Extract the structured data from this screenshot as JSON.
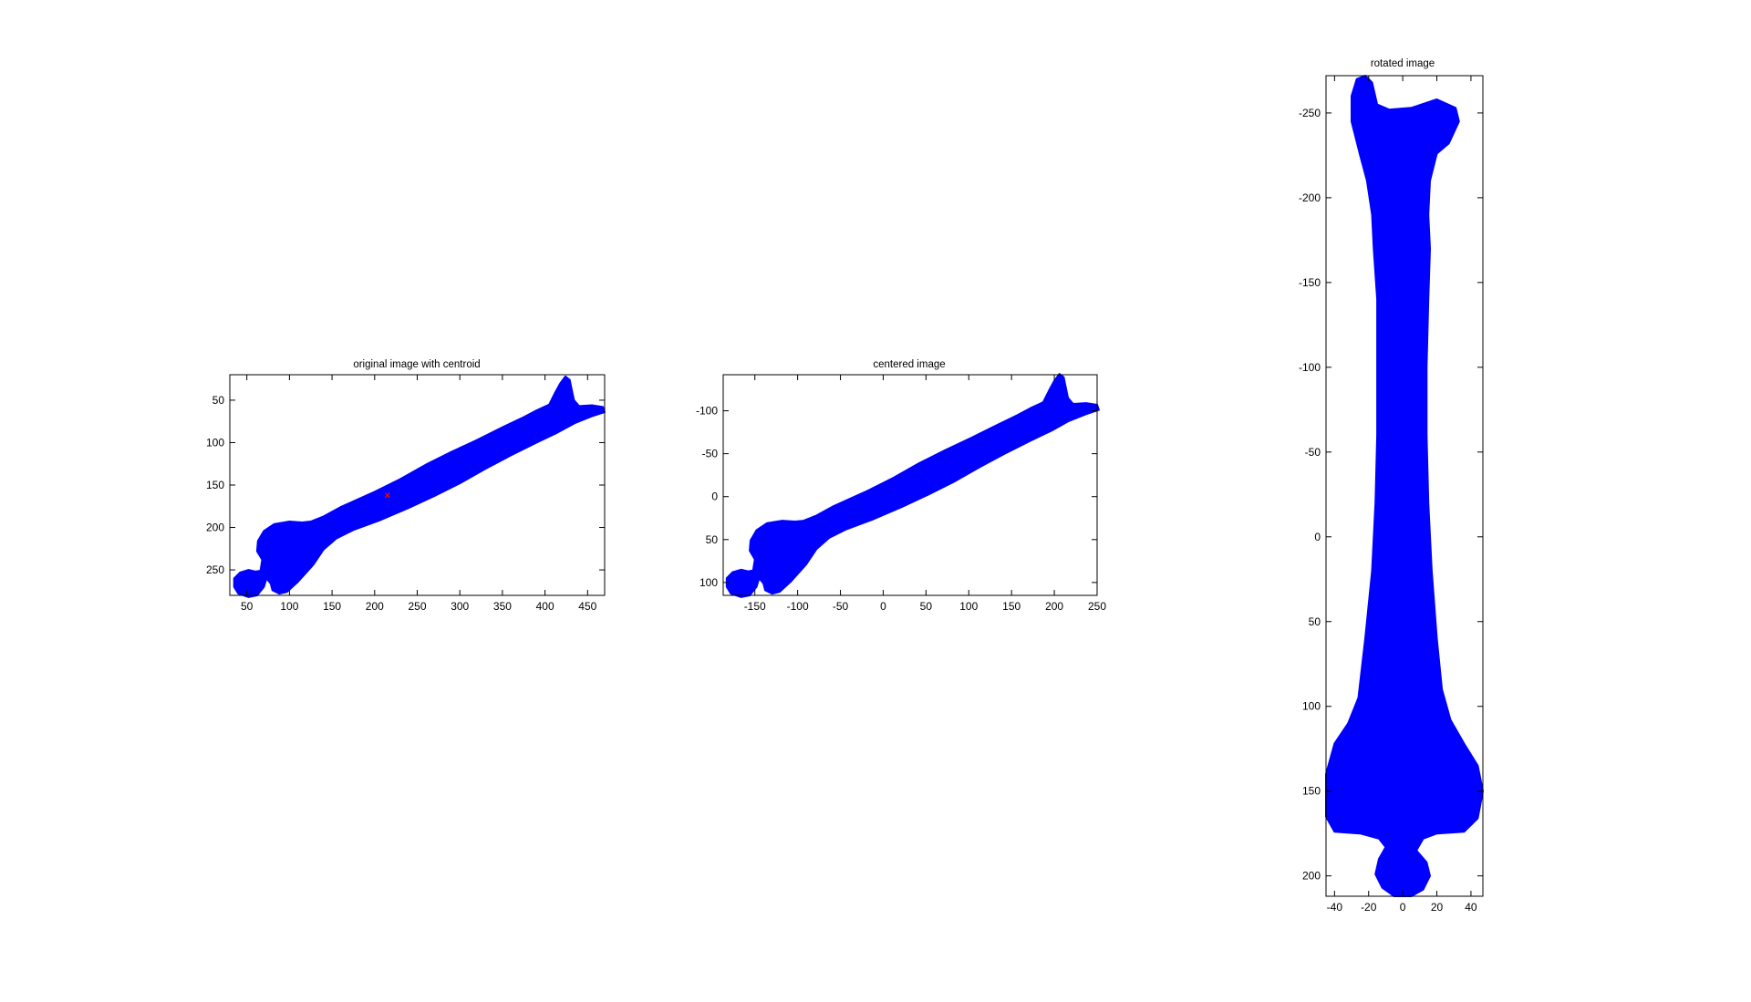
{
  "chart_data": [
    {
      "type": "scatter",
      "title": "original image with centroid",
      "xlabel": "",
      "ylabel": "",
      "x_ticks": [
        50,
        100,
        150,
        200,
        250,
        300,
        350,
        400,
        450
      ],
      "y_ticks": [
        50,
        100,
        150,
        200,
        250
      ],
      "xlim": [
        30,
        470
      ],
      "ylim": [
        20,
        280
      ],
      "y_reversed": true,
      "grid": false,
      "colors": {
        "shape": "#0000ff",
        "centroid": "#ff0000"
      },
      "shape_outline": [
        [
          35,
          260
        ],
        [
          42,
          253
        ],
        [
          52,
          250
        ],
        [
          60,
          252
        ],
        [
          66,
          251
        ],
        [
          68,
          238
        ],
        [
          62,
          228
        ],
        [
          63,
          216
        ],
        [
          70,
          204
        ],
        [
          82,
          196
        ],
        [
          100,
          193
        ],
        [
          115,
          194
        ],
        [
          125,
          193
        ],
        [
          140,
          187
        ],
        [
          160,
          176
        ],
        [
          180,
          167
        ],
        [
          200,
          158
        ],
        [
          230,
          143
        ],
        [
          260,
          126
        ],
        [
          290,
          111
        ],
        [
          320,
          97
        ],
        [
          350,
          82
        ],
        [
          375,
          70
        ],
        [
          390,
          62
        ],
        [
          405,
          55
        ],
        [
          412,
          41
        ],
        [
          418,
          30
        ],
        [
          424,
          22
        ],
        [
          429,
          26
        ],
        [
          431,
          36
        ],
        [
          434,
          50
        ],
        [
          440,
          57
        ],
        [
          455,
          56
        ],
        [
          468,
          58
        ],
        [
          470,
          64
        ],
        [
          455,
          69
        ],
        [
          435,
          77
        ],
        [
          415,
          88
        ],
        [
          390,
          100
        ],
        [
          360,
          115
        ],
        [
          330,
          131
        ],
        [
          300,
          148
        ],
        [
          270,
          163
        ],
        [
          240,
          177
        ],
        [
          205,
          192
        ],
        [
          175,
          203
        ],
        [
          155,
          213
        ],
        [
          140,
          226
        ],
        [
          128,
          244
        ],
        [
          110,
          264
        ],
        [
          97,
          276
        ],
        [
          88,
          278
        ],
        [
          80,
          274
        ],
        [
          78,
          266
        ],
        [
          73,
          260
        ],
        [
          70,
          270
        ],
        [
          62,
          280
        ],
        [
          52,
          282
        ],
        [
          40,
          278
        ],
        [
          35,
          270
        ]
      ],
      "centroid": {
        "x": 215,
        "y": 162
      }
    },
    {
      "type": "scatter",
      "title": "centered image",
      "xlabel": "",
      "ylabel": "",
      "x_ticks": [
        -150,
        -100,
        -50,
        0,
        50,
        100,
        150,
        200,
        250
      ],
      "y_ticks": [
        -100,
        -50,
        0,
        50,
        100
      ],
      "xlim": [
        -187,
        250
      ],
      "ylim": [
        -142,
        115
      ],
      "y_reversed": true,
      "grid": false,
      "colors": {
        "shape": "#0000ff"
      },
      "shape_outline": [
        [
          -183,
          95
        ],
        [
          -176,
          88
        ],
        [
          -166,
          85
        ],
        [
          -158,
          87
        ],
        [
          -152,
          86
        ],
        [
          -150,
          73
        ],
        [
          -156,
          63
        ],
        [
          -155,
          51
        ],
        [
          -148,
          39
        ],
        [
          -136,
          31
        ],
        [
          -118,
          28
        ],
        [
          -103,
          29
        ],
        [
          -93,
          28
        ],
        [
          -78,
          22
        ],
        [
          -58,
          11
        ],
        [
          -38,
          2
        ],
        [
          -18,
          -7
        ],
        [
          12,
          -22
        ],
        [
          42,
          -39
        ],
        [
          72,
          -54
        ],
        [
          102,
          -68
        ],
        [
          132,
          -83
        ],
        [
          157,
          -95
        ],
        [
          172,
          -103
        ],
        [
          187,
          -110
        ],
        [
          194,
          -124
        ],
        [
          200,
          -135
        ],
        [
          206,
          -143
        ],
        [
          211,
          -139
        ],
        [
          213,
          -129
        ],
        [
          216,
          -115
        ],
        [
          222,
          -108
        ],
        [
          237,
          -109
        ],
        [
          250,
          -107
        ],
        [
          252,
          -101
        ],
        [
          237,
          -96
        ],
        [
          217,
          -88
        ],
        [
          197,
          -77
        ],
        [
          172,
          -65
        ],
        [
          142,
          -50
        ],
        [
          112,
          -34
        ],
        [
          82,
          -17
        ],
        [
          52,
          -2
        ],
        [
          22,
          12
        ],
        [
          -13,
          27
        ],
        [
          -43,
          38
        ],
        [
          -63,
          48
        ],
        [
          -78,
          61
        ],
        [
          -90,
          79
        ],
        [
          -108,
          99
        ],
        [
          -121,
          111
        ],
        [
          -130,
          113
        ],
        [
          -138,
          109
        ],
        [
          -140,
          101
        ],
        [
          -145,
          95
        ],
        [
          -148,
          105
        ],
        [
          -156,
          115
        ],
        [
          -166,
          117
        ],
        [
          -178,
          113
        ],
        [
          -183,
          105
        ]
      ]
    },
    {
      "type": "scatter",
      "title": "rotated image",
      "xlabel": "",
      "ylabel": "",
      "x_ticks": [
        -40,
        -20,
        0,
        20,
        40
      ],
      "y_ticks": [
        -250,
        -200,
        -150,
        -100,
        -50,
        0,
        50,
        100,
        150,
        200
      ],
      "xlim": [
        -45,
        47
      ],
      "ylim": [
        -272,
        212
      ],
      "y_reversed": true,
      "grid": false,
      "colors": {
        "shape": "#0000ff"
      },
      "shape_outline": [
        [
          -30,
          -260
        ],
        [
          -27,
          -270
        ],
        [
          -22,
          -272
        ],
        [
          -18,
          -268
        ],
        [
          -15,
          -255
        ],
        [
          -8,
          -252
        ],
        [
          5,
          -253
        ],
        [
          20,
          -258
        ],
        [
          31,
          -253
        ],
        [
          33,
          -245
        ],
        [
          27,
          -232
        ],
        [
          20,
          -226
        ],
        [
          16,
          -210
        ],
        [
          15,
          -190
        ],
        [
          16,
          -170
        ],
        [
          15,
          -140
        ],
        [
          14,
          -100
        ],
        [
          14,
          -60
        ],
        [
          15,
          -20
        ],
        [
          17,
          20
        ],
        [
          20,
          60
        ],
        [
          23,
          90
        ],
        [
          28,
          108
        ],
        [
          36,
          122
        ],
        [
          44,
          135
        ],
        [
          47,
          150
        ],
        [
          44,
          166
        ],
        [
          36,
          174
        ],
        [
          20,
          175
        ],
        [
          12,
          178
        ],
        [
          8,
          185
        ],
        [
          14,
          192
        ],
        [
          16,
          200
        ],
        [
          12,
          208
        ],
        [
          5,
          212
        ],
        [
          -5,
          212
        ],
        [
          -12,
          207
        ],
        [
          -16,
          199
        ],
        [
          -14,
          190
        ],
        [
          -10,
          183
        ],
        [
          -14,
          178
        ],
        [
          -25,
          175
        ],
        [
          -40,
          174
        ],
        [
          -45,
          165
        ],
        [
          -45,
          140
        ],
        [
          -40,
          122
        ],
        [
          -32,
          110
        ],
        [
          -26,
          95
        ],
        [
          -22,
          60
        ],
        [
          -18,
          20
        ],
        [
          -16,
          -20
        ],
        [
          -15,
          -60
        ],
        [
          -15,
          -100
        ],
        [
          -15,
          -140
        ],
        [
          -17,
          -170
        ],
        [
          -18,
          -190
        ],
        [
          -21,
          -210
        ],
        [
          -25,
          -225
        ],
        [
          -30,
          -245
        ]
      ]
    }
  ]
}
